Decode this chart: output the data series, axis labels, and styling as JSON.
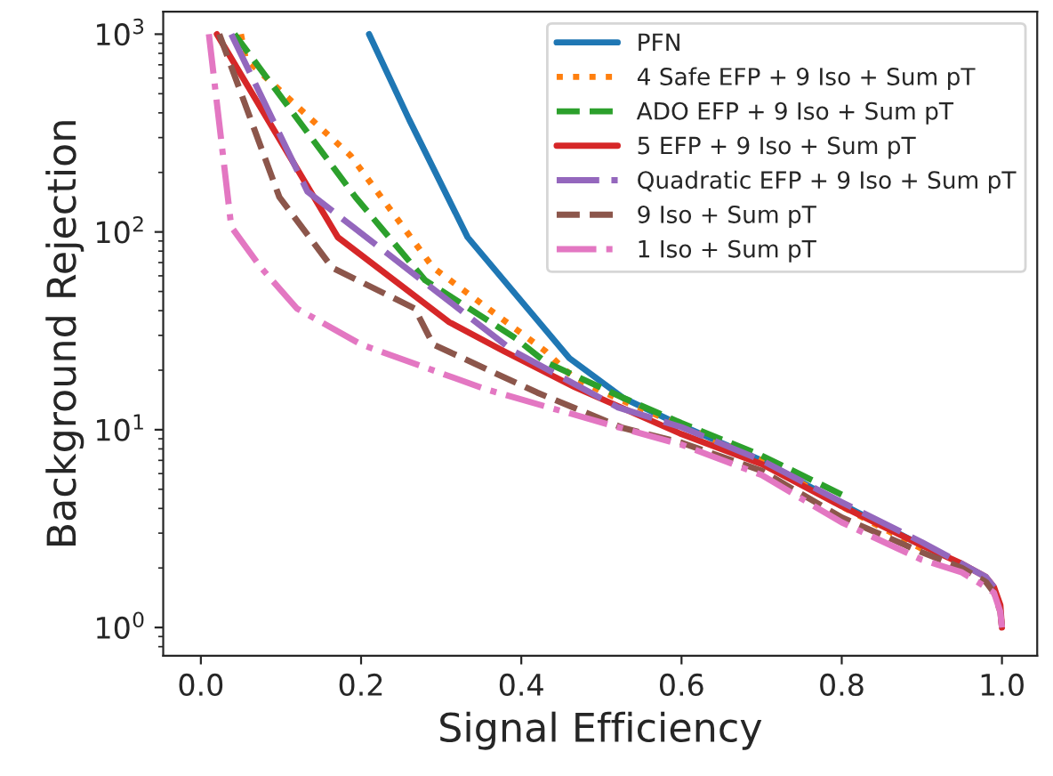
{
  "chart_data": {
    "type": "line",
    "xlabel": "Signal Efficiency",
    "ylabel": "Background Rejection",
    "log": "y",
    "xlim": [
      -0.047,
      1.044
    ],
    "ylim": [
      0.72,
      1300
    ],
    "xticks": [
      {
        "value": 0,
        "label": "0.0"
      },
      0.2,
      0.4,
      0.6,
      0.8,
      {
        "value": 1,
        "label": "1.0"
      }
    ],
    "yticks": [
      {
        "value": 1,
        "label": "10$^{0}$"
      },
      {
        "value": 10,
        "label": "10$^{1}$"
      },
      {
        "value": 100,
        "label": "10$^{2}$"
      },
      {
        "value": 1000,
        "label": "10$^{3}$"
      }
    ],
    "grid": false,
    "legend": "top right",
    "series": [
      {
        "name": "PFN",
        "color": "#1f77b4",
        "line_style": "solid",
        "x": [
          0.21,
          0.26,
          0.333,
          0.46,
          0.527,
          0.6,
          0.7,
          0.8,
          0.9
        ],
        "values": [
          1000,
          370,
          94,
          23,
          14.5,
          10.5,
          7.0,
          4.2,
          2.6
        ]
      },
      {
        "name": "4 Safe EFP + 9 Iso + Sum pT",
        "color": "#ff7f0e",
        "line_style": "dotted",
        "x": [
          0.05,
          0.056,
          0.187,
          0.29,
          0.43,
          0.467,
          0.527,
          0.6,
          0.7,
          0.8,
          0.9
        ],
        "values": [
          1000,
          750,
          243,
          66,
          25,
          18,
          14,
          10.5,
          7.0,
          4.1,
          2.5
        ]
      },
      {
        "name": "ADO EFP + 9 Iso + Sum pT",
        "color": "#2ca02c",
        "line_style": "dashed",
        "x": [
          0.042,
          0.193,
          0.28,
          0.393,
          0.43,
          0.527,
          0.6,
          0.7,
          0.8
        ],
        "values": [
          1000,
          150,
          57,
          29,
          22,
          14.5,
          10.8,
          7.4,
          4.7
        ]
      },
      {
        "name": "5 EFP + 9 Iso + Sum pT",
        "color": "#d62728",
        "line_style": "solid",
        "x": [
          0.02,
          0.171,
          0.31,
          0.378,
          0.467,
          0.6,
          0.7,
          0.8,
          0.9,
          0.95,
          0.98,
          0.99,
          0.998,
          1.0
        ],
        "values": [
          1000,
          94,
          35,
          25,
          16.4,
          9.5,
          6.7,
          4.1,
          2.6,
          2.1,
          1.8,
          1.6,
          1.3,
          1.0
        ]
      },
      {
        "name": "Quadratic EFP + 9 Iso + Sum pT",
        "color": "#9467bd",
        "line_style": "longdash",
        "x": [
          0.038,
          0.133,
          0.39,
          0.52,
          0.6,
          0.7,
          0.8,
          0.9,
          0.95,
          0.98,
          0.99
        ],
        "values": [
          1000,
          160,
          25,
          13,
          10.3,
          7.0,
          4.3,
          2.7,
          2.1,
          1.8,
          1.6
        ]
      },
      {
        "name": "9 Iso + Sum pT",
        "color": "#8c564b",
        "line_style": "dashed",
        "x": [
          0.023,
          0.098,
          0.164,
          0.267,
          0.29,
          0.42,
          0.527,
          0.6,
          0.7,
          0.8,
          0.9,
          0.95,
          0.98,
          0.99,
          0.998,
          1.0
        ],
        "values": [
          1000,
          150,
          66,
          41,
          27,
          15.4,
          10.2,
          8.6,
          6.2,
          3.6,
          2.4,
          2.0,
          1.7,
          1.5,
          1.2,
          1.0
        ]
      },
      {
        "name": "1 Iso + Sum pT",
        "color": "#e377c2",
        "line_style": "dashdot",
        "x": [
          0.01,
          0.038,
          0.075,
          0.12,
          0.2,
          0.356,
          0.51,
          0.6,
          0.7,
          0.8,
          0.9,
          0.95,
          0.98,
          0.99,
          0.998,
          1.0
        ],
        "values": [
          1000,
          106,
          66,
          41,
          27,
          16,
          10.6,
          8.4,
          5.9,
          3.4,
          2.2,
          1.9,
          1.6,
          1.5,
          1.2,
          1.0
        ]
      }
    ]
  }
}
